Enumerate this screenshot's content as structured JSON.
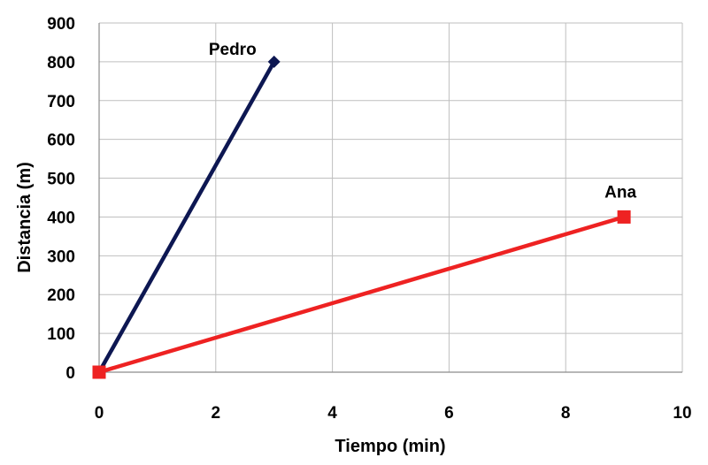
{
  "chart_data": {
    "type": "line",
    "title": "",
    "xlabel": "Tiempo (min)",
    "ylabel": "Distancia (m)",
    "xlim": [
      0,
      10
    ],
    "ylim": [
      0,
      900
    ],
    "xticks": [
      "0",
      "2",
      "4",
      "6",
      "8",
      "10"
    ],
    "yticks": [
      "0",
      "100",
      "200",
      "300",
      "400",
      "500",
      "600",
      "700",
      "800",
      "900"
    ],
    "grid": true,
    "legend": "none",
    "series": [
      {
        "name": "Pedro",
        "x": [
          0,
          3
        ],
        "y": [
          0,
          800
        ],
        "color": "#0d1752",
        "marker": "diamond"
      },
      {
        "name": "Ana",
        "x": [
          0,
          9
        ],
        "y": [
          0,
          400
        ],
        "color": "#ee2222",
        "marker": "square"
      }
    ]
  }
}
